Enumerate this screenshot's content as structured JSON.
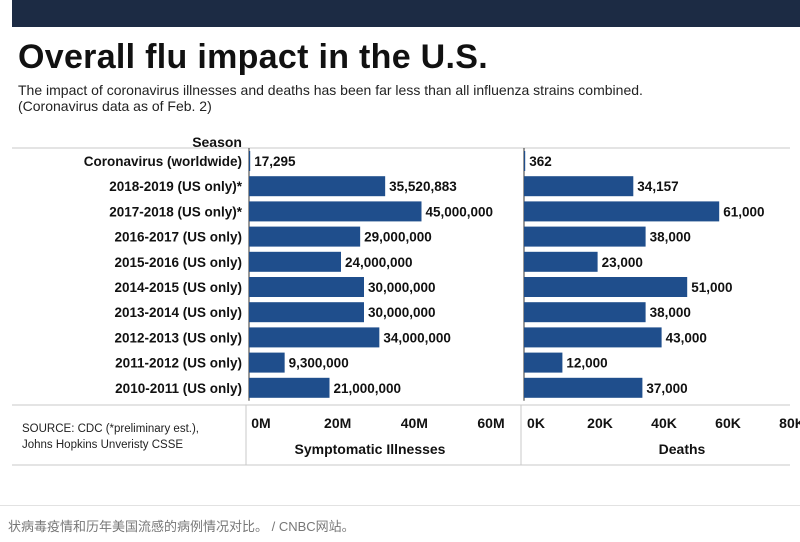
{
  "header": {
    "title": "Overall flu impact in the U.S.",
    "subtitle_line1": "The impact of coronavirus illnesses and deaths has been far less than all influenza strains combined.",
    "subtitle_line2": "(Coronavirus data as of Feb. 2)"
  },
  "source": {
    "line1": "SOURCE: CDC  (*preliminary est.),",
    "line2": "Johns Hopkins Unveristy CSSE"
  },
  "footer": {
    "caption": "状病毒疫情和历年美国流感的病例情况对比。 / CNBC网站。"
  },
  "colors": {
    "bar": "#1f4e8c",
    "topbar": "#1c2b44",
    "rule": "#c8c8c8"
  },
  "chart_data": {
    "type": "bar",
    "orientation": "horizontal",
    "category_header": "Season",
    "categories": [
      "Coronavirus (worldwide)",
      "2018-2019 (US only)*",
      "2017-2018 (US only)*",
      "2016-2017 (US only)",
      "2015-2016 (US only)",
      "2014-2015 (US only)",
      "2013-2014 (US only)",
      "2012-2013 (US only)",
      "2011-2012 (US only)",
      "2010-2011 (US only)"
    ],
    "panels": [
      {
        "name": "Symptomatic Illnesses",
        "xlabel": "Symptomatic Illnesses",
        "xlim": [
          0,
          60000000
        ],
        "ticks": [
          0,
          20000000,
          40000000,
          60000000
        ],
        "tick_labels": [
          "0M",
          "20M",
          "40M",
          "60M"
        ],
        "values": [
          17295,
          35520883,
          45000000,
          29000000,
          24000000,
          30000000,
          30000000,
          34000000,
          9300000,
          21000000
        ],
        "value_labels": [
          "17,295",
          "35,520,883",
          "45,000,000",
          "29,000,000",
          "24,000,000",
          "30,000,000",
          "30,000,000",
          "34,000,000",
          "9,300,000",
          "21,000,000"
        ]
      },
      {
        "name": "Deaths",
        "xlabel": "Deaths",
        "xlim": [
          0,
          80000
        ],
        "ticks": [
          0,
          20000,
          40000,
          60000,
          80000
        ],
        "tick_labels": [
          "0K",
          "20K",
          "40K",
          "60K",
          "80K"
        ],
        "values": [
          362,
          34157,
          61000,
          38000,
          23000,
          51000,
          38000,
          43000,
          12000,
          37000
        ],
        "value_labels": [
          "362",
          "34,157",
          "61,000",
          "38,000",
          "23,000",
          "51,000",
          "38,000",
          "43,000",
          "12,000",
          "37,000"
        ]
      }
    ]
  }
}
